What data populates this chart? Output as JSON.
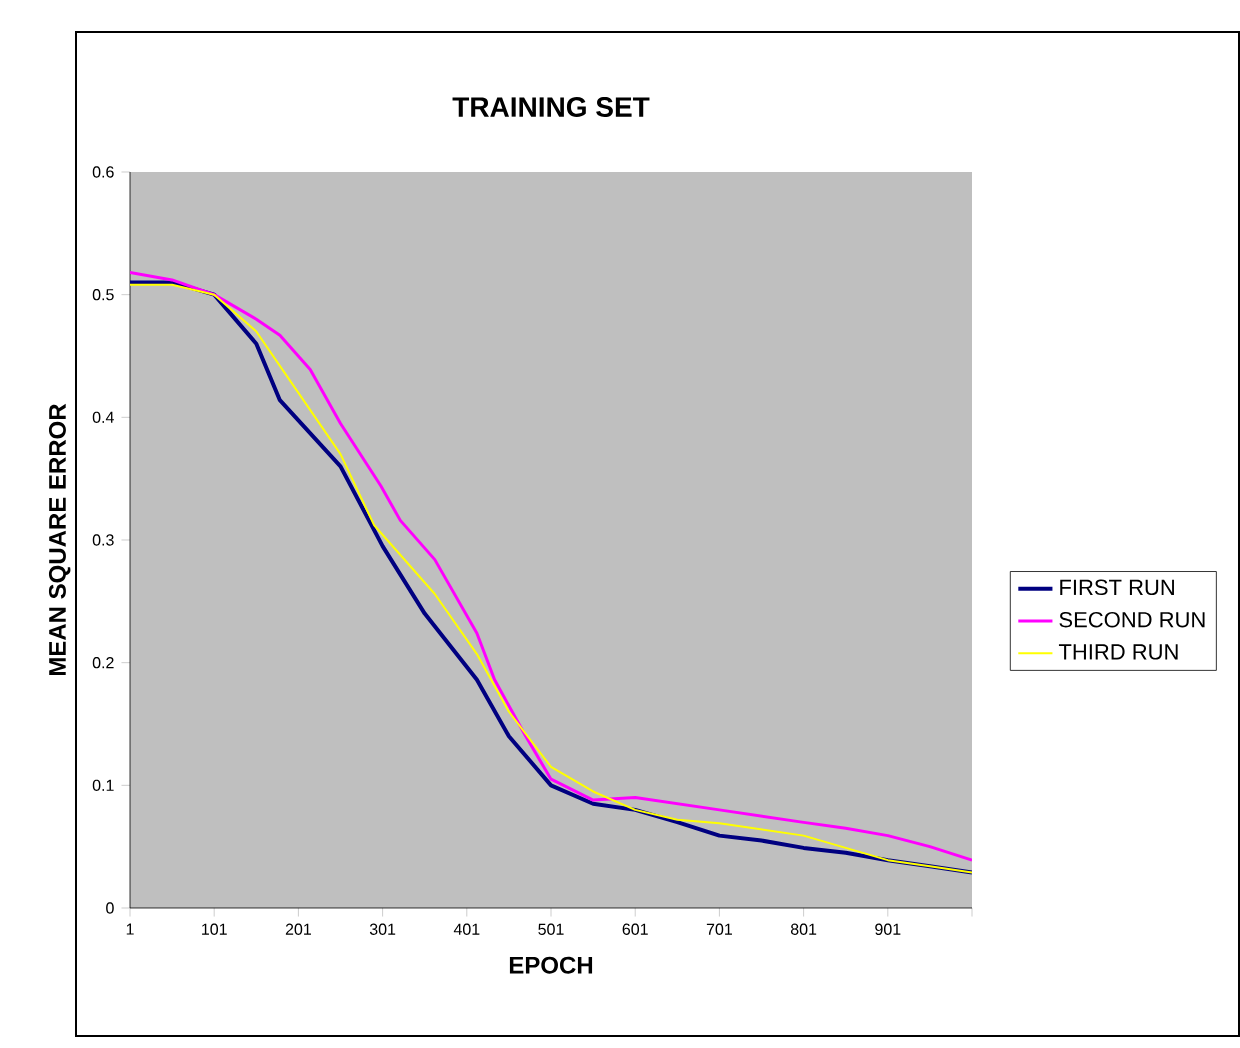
{
  "chart_data": {
    "type": "line",
    "title": "TRAINING SET",
    "xlabel": "EPOCH",
    "ylabel": "MEAN SQUARE ERROR",
    "xlim": [
      1,
      1001
    ],
    "xticks": [
      1,
      101,
      201,
      301,
      401,
      501,
      601,
      701,
      801,
      901,
      {
        "value": 1001,
        "label": null
      }
    ],
    "ylim": [
      0,
      0.6
    ],
    "yticks": [
      0,
      0.1,
      0.2,
      0.3,
      0.4,
      0.5,
      0.6
    ],
    "grid": false,
    "legend": "right",
    "marker": "none",
    "line_style": "solid",
    "series": [
      {
        "name": "FIRST RUN",
        "color": "#000080",
        "x": [
          1,
          51,
          101,
          151,
          179,
          251,
          301,
          351,
          413,
          451,
          501,
          551,
          601,
          651,
          701,
          751,
          801,
          851,
          901,
          951,
          1001
        ],
        "values": [
          0.51,
          0.51,
          0.5,
          0.46,
          0.414,
          0.36,
          0.295,
          0.24,
          0.186,
          0.14,
          0.1,
          0.085,
          0.08,
          0.07,
          0.059,
          0.055,
          0.049,
          0.045,
          0.039,
          0.034,
          0.029
        ]
      },
      {
        "name": "SECOND RUN",
        "color": "#ff00ff",
        "x": [
          1,
          51,
          101,
          151,
          179,
          215,
          251,
          299,
          322,
          363,
          413,
          434,
          471,
          501,
          551,
          601,
          701,
          799,
          851,
          901,
          951,
          1001
        ],
        "values": [
          0.518,
          0.512,
          0.5,
          0.48,
          0.467,
          0.439,
          0.395,
          0.344,
          0.316,
          0.284,
          0.224,
          0.186,
          0.14,
          0.105,
          0.088,
          0.09,
          0.08,
          0.07,
          0.065,
          0.059,
          0.05,
          0.039
        ]
      },
      {
        "name": "THIRD RUN",
        "color": "#ffff00",
        "x": [
          1,
          51,
          101,
          151,
          179,
          251,
          291,
          363,
          413,
          451,
          501,
          551,
          601,
          651,
          701,
          801,
          851,
          901,
          951,
          1001
        ],
        "values": [
          0.508,
          0.508,
          0.5,
          0.47,
          0.442,
          0.37,
          0.312,
          0.256,
          0.207,
          0.16,
          0.115,
          0.095,
          0.08,
          0.072,
          0.069,
          0.059,
          0.049,
          0.039,
          0.034,
          0.029
        ]
      }
    ]
  }
}
